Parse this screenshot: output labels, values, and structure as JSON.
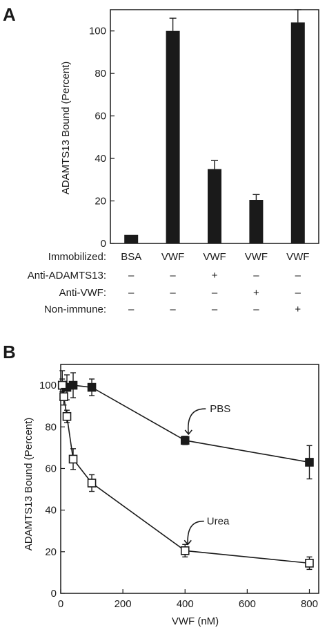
{
  "chart_data": [
    {
      "type": "bar",
      "panel": "A",
      "ylabel": "ADAMTS13 Bound (Percent)",
      "ylim": [
        0,
        110
      ],
      "yticks": [
        0,
        20,
        40,
        60,
        80,
        100
      ],
      "categories": [
        "BSA",
        "VWF",
        "VWF",
        "VWF",
        "VWF"
      ],
      "values": [
        4,
        100,
        35,
        20.5,
        104
      ],
      "errors": [
        0,
        6,
        4,
        2.5,
        6
      ],
      "condition_rows": [
        {
          "label": "Immobilized:",
          "values": [
            "BSA",
            "VWF",
            "VWF",
            "VWF",
            "VWF"
          ]
        },
        {
          "label": "Anti-ADAMTS13:",
          "values": [
            "–",
            "–",
            "+",
            "–",
            "–"
          ]
        },
        {
          "label": "Anti-VWF:",
          "values": [
            "–",
            "–",
            "–",
            "+",
            "–"
          ]
        },
        {
          "label": "Non-immune:",
          "values": [
            "–",
            "–",
            "–",
            "–",
            "+"
          ]
        }
      ],
      "grid": false
    },
    {
      "type": "line",
      "panel": "B",
      "xlabel": "VWF (nM)",
      "ylabel": "ADAMTS13 Bound (Percent)",
      "xlim": [
        0,
        830
      ],
      "ylim": [
        0,
        110
      ],
      "xticks": [
        0,
        200,
        400,
        600,
        800
      ],
      "yticks": [
        0,
        20,
        40,
        60,
        80,
        100
      ],
      "series": [
        {
          "name": "PBS",
          "marker": "filled-square",
          "x": [
            5,
            20,
            40,
            100,
            400,
            800
          ],
          "y": [
            100,
            99,
            100,
            99,
            73.5,
            63
          ],
          "err": [
            7,
            6,
            6,
            4,
            2,
            8
          ]
        },
        {
          "name": "Urea",
          "marker": "open-square",
          "x": [
            5,
            10,
            20,
            40,
            100,
            400,
            800
          ],
          "y": [
            100,
            94.5,
            85,
            64.5,
            53,
            20.5,
            14.5
          ],
          "err": [
            3,
            4,
            3,
            5,
            4,
            3,
            3
          ]
        }
      ],
      "grid": false
    }
  ]
}
